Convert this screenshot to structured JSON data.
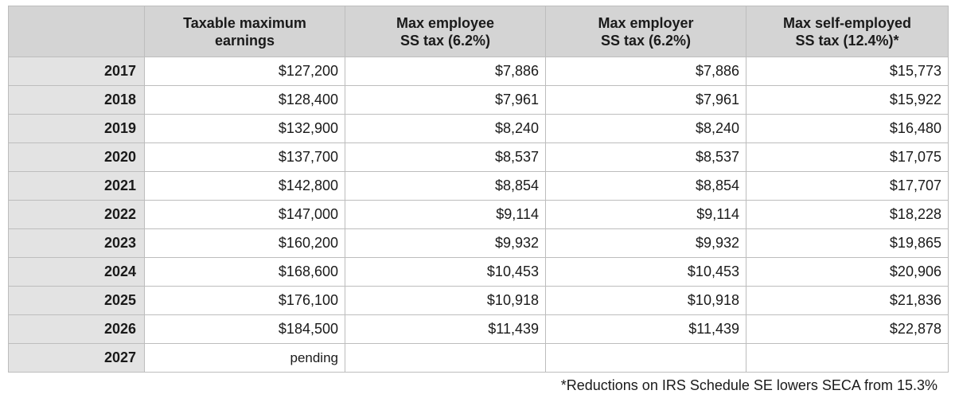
{
  "table": {
    "headers": [
      {
        "line1": "Taxable maximum",
        "line2": "earnings"
      },
      {
        "line1": "Max employee",
        "line2": "SS tax (6.2%)"
      },
      {
        "line1": "Max employer",
        "line2": "SS tax (6.2%)"
      },
      {
        "line1": "Max self-employed",
        "line2": "SS tax (12.4%)*"
      }
    ],
    "rows": [
      {
        "year": "2017",
        "taxable_max": "$127,200",
        "employee": "$7,886",
        "employer": "$7,886",
        "self_employed": "$15,773"
      },
      {
        "year": "2018",
        "taxable_max": "$128,400",
        "employee": "$7,961",
        "employer": "$7,961",
        "self_employed": "$15,922"
      },
      {
        "year": "2019",
        "taxable_max": "$132,900",
        "employee": "$8,240",
        "employer": "$8,240",
        "self_employed": "$16,480"
      },
      {
        "year": "2020",
        "taxable_max": "$137,700",
        "employee": "$8,537",
        "employer": "$8,537",
        "self_employed": "$17,075"
      },
      {
        "year": "2021",
        "taxable_max": "$142,800",
        "employee": "$8,854",
        "employer": "$8,854",
        "self_employed": "$17,707"
      },
      {
        "year": "2022",
        "taxable_max": "$147,000",
        "employee": "$9,114",
        "employer": "$9,114",
        "self_employed": "$18,228"
      },
      {
        "year": "2023",
        "taxable_max": "$160,200",
        "employee": "$9,932",
        "employer": "$9,932",
        "self_employed": "$19,865"
      },
      {
        "year": "2024",
        "taxable_max": "$168,600",
        "employee": "$10,453",
        "employer": "$10,453",
        "self_employed": "$20,906"
      },
      {
        "year": "2025",
        "taxable_max": "$176,100",
        "employee": "$10,918",
        "employer": "$10,918",
        "self_employed": "$21,836"
      },
      {
        "year": "2026",
        "taxable_max": "$184,500",
        "employee": "$11,439",
        "employer": "$11,439",
        "self_employed": "$22,878"
      },
      {
        "year": "2027",
        "taxable_max": "pending",
        "employee": "",
        "employer": "",
        "self_employed": ""
      }
    ]
  },
  "footnote": "*Reductions on IRS Schedule SE lowers SECA from 15.3%",
  "colors": {
    "header_bg": "#d4d4d4",
    "year_col_bg": "#e3e3e3",
    "border": "#bdbdbd"
  }
}
